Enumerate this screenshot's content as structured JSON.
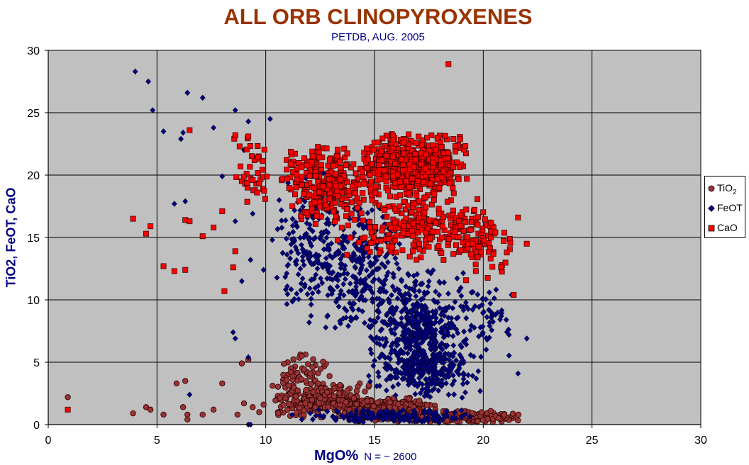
{
  "chart_data": {
    "type": "scatter",
    "title": "ALL ORB CLINOPYROXENES",
    "subtitle": "PETDB, AUG. 2005",
    "xlabel": "MgO%",
    "xlabel_note": "N = ~ 2600",
    "ylabel": "TiO2, FeOT, CaO",
    "xlim": [
      0,
      30
    ],
    "ylim": [
      0,
      30
    ],
    "xticks": [
      "0",
      "5",
      "10",
      "15",
      "20",
      "25",
      "30"
    ],
    "yticks": [
      "0",
      "5",
      "10",
      "15",
      "20",
      "25",
      "30"
    ],
    "grid": true,
    "plot_background": "#c0c0c0",
    "legend": {
      "position": "right",
      "items": [
        {
          "label": "TiO",
          "subscript": "2",
          "color": "#993333",
          "marker": "circle"
        },
        {
          "label": "FeOT",
          "color": "#000080",
          "marker": "diamond"
        },
        {
          "label": "CaO",
          "color": "#ff0000",
          "marker": "square"
        }
      ]
    },
    "series": [
      {
        "name": "TiO2",
        "color": "#993333",
        "marker": "circle",
        "outliers": [
          [
            0.9,
            2.2
          ],
          [
            3.9,
            0.9
          ],
          [
            4.5,
            1.4
          ],
          [
            4.7,
            1.2
          ],
          [
            5.3,
            0.8
          ],
          [
            5.9,
            3.3
          ],
          [
            6.3,
            3.5
          ],
          [
            6.2,
            1.4
          ],
          [
            6.4,
            0.8
          ],
          [
            6.4,
            0.4
          ],
          [
            7.1,
            0.8
          ],
          [
            7.6,
            1.2
          ],
          [
            8.0,
            3.3
          ],
          [
            8.9,
            4.9
          ],
          [
            9.2,
            5.2
          ],
          [
            9.0,
            1.7
          ],
          [
            8.7,
            0.8
          ],
          [
            9.4,
            1.4
          ],
          [
            9.7,
            1.0
          ],
          [
            9.9,
            1.6
          ]
        ],
        "clusters": [
          {
            "x": [
              10.5,
              13.0
            ],
            "y": [
              2.5,
              6.0
            ],
            "n": 55
          },
          {
            "x": [
              10.0,
              15.0
            ],
            "y": [
              0.4,
              3.5
            ],
            "n": 260
          },
          {
            "x": [
              13.0,
              18.0
            ],
            "y": [
              0.2,
              2.2
            ],
            "n": 360
          },
          {
            "x": [
              17.0,
              21.8
            ],
            "y": [
              0.1,
              1.2
            ],
            "n": 160
          }
        ]
      },
      {
        "name": "FeOT",
        "color": "#000080",
        "marker": "diamond",
        "outliers": [
          [
            4.0,
            28.3
          ],
          [
            4.6,
            27.5
          ],
          [
            4.8,
            25.2
          ],
          [
            5.3,
            23.5
          ],
          [
            6.1,
            22.9
          ],
          [
            6.2,
            23.4
          ],
          [
            6.4,
            26.6
          ],
          [
            7.1,
            26.2
          ],
          [
            7.6,
            23.8
          ],
          [
            5.8,
            17.7
          ],
          [
            6.3,
            17.9
          ],
          [
            8.6,
            25.2
          ],
          [
            9.2,
            24.3
          ],
          [
            10.2,
            24.5
          ],
          [
            8.5,
            7.4
          ],
          [
            8.6,
            6.9
          ],
          [
            9.2,
            5.4
          ],
          [
            9.2,
            0.0
          ],
          [
            9.3,
            0.0
          ],
          [
            21.6,
            4.1
          ],
          [
            22.0,
            6.9
          ],
          [
            21.3,
            10.4
          ],
          [
            6.5,
            2.4
          ],
          [
            8.0,
            19.9
          ],
          [
            9.0,
            22.0
          ],
          [
            9.6,
            21.5
          ],
          [
            9.4,
            16.9
          ],
          [
            8.6,
            16.3
          ],
          [
            10.3,
            14.8
          ],
          [
            9.9,
            12.4
          ],
          [
            9.3,
            13.2
          ],
          [
            8.9,
            11.5
          ]
        ],
        "clusters": [
          {
            "x": [
              10.2,
              13.5
            ],
            "y": [
              8.0,
              21.0
            ],
            "n": 160
          },
          {
            "x": [
              12.0,
              16.5
            ],
            "y": [
              7.0,
              18.0
            ],
            "n": 280
          },
          {
            "x": [
              14.5,
              19.5
            ],
            "y": [
              2.5,
              12.5
            ],
            "n": 520
          },
          {
            "x": [
              15.0,
              20.0
            ],
            "y": [
              2.0,
              6.0
            ],
            "n": 180
          },
          {
            "x": [
              18.5,
              21.5
            ],
            "y": [
              5.0,
              11.5
            ],
            "n": 60
          },
          {
            "x": [
              11.0,
              20.0
            ],
            "y": [
              0.0,
              1.3
            ],
            "n": 160
          }
        ]
      },
      {
        "name": "CaO",
        "color": "#ff0000",
        "marker": "square",
        "outliers": [
          [
            0.9,
            1.2
          ],
          [
            3.9,
            16.5
          ],
          [
            4.5,
            15.3
          ],
          [
            4.7,
            15.9
          ],
          [
            5.3,
            12.7
          ],
          [
            5.8,
            12.3
          ],
          [
            6.3,
            12.4
          ],
          [
            6.3,
            16.4
          ],
          [
            6.5,
            16.3
          ],
          [
            6.5,
            23.6
          ],
          [
            7.1,
            15.1
          ],
          [
            7.6,
            15.8
          ],
          [
            8.0,
            17.1
          ],
          [
            8.1,
            10.7
          ],
          [
            8.5,
            12.6
          ],
          [
            8.6,
            23.2
          ],
          [
            8.6,
            13.9
          ],
          [
            9.2,
            23.1
          ],
          [
            8.8,
            22.3
          ],
          [
            9.4,
            19.6
          ],
          [
            9.6,
            18.6
          ],
          [
            18.4,
            28.9
          ],
          [
            22.0,
            14.5
          ],
          [
            21.6,
            16.6
          ],
          [
            21.4,
            10.4
          ]
        ],
        "clusters": [
          {
            "x": [
              14.0,
              19.5
            ],
            "y": [
              18.0,
              23.5
            ],
            "n": 520
          },
          {
            "x": [
              16.0,
              18.5
            ],
            "y": [
              19.0,
              22.0
            ],
            "n": 180
          },
          {
            "x": [
              10.5,
              15.0
            ],
            "y": [
              16.0,
              22.5
            ],
            "n": 260
          },
          {
            "x": [
              13.0,
              21.0
            ],
            "y": [
              13.0,
              19.0
            ],
            "n": 260
          },
          {
            "x": [
              18.5,
              21.8
            ],
            "y": [
              11.5,
              17.0
            ],
            "n": 60
          },
          {
            "x": [
              8.5,
              10.5
            ],
            "y": [
              17.5,
              23.0
            ],
            "n": 35
          }
        ]
      }
    ]
  }
}
